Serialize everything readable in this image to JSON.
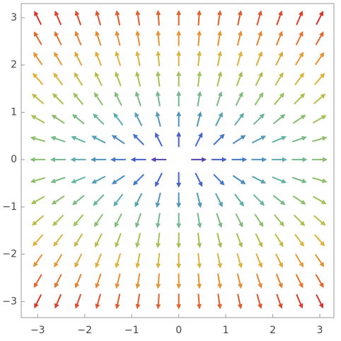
{
  "chart_data": {
    "type": "vector",
    "x": [
      -3,
      -2.57,
      -2.14,
      -1.71,
      -1.29,
      -0.86,
      -0.43,
      0,
      0.43,
      0.86,
      1.29,
      1.71,
      2.14,
      2.57,
      3
    ],
    "y": [
      -3,
      -2.57,
      -2.14,
      -1.71,
      -1.29,
      -0.86,
      -0.43,
      0,
      0.43,
      0.86,
      1.29,
      1.71,
      2.14,
      2.57,
      3
    ],
    "u": [
      [
        -3,
        -2.57,
        -2.14,
        -1.71,
        -1.29,
        -0.86,
        -0.43,
        0,
        0.43,
        0.86,
        1.29,
        1.71,
        2.14,
        2.57,
        3
      ],
      [
        -3,
        -2.57,
        -2.14,
        -1.71,
        -1.29,
        -0.86,
        -0.43,
        0,
        0.43,
        0.86,
        1.29,
        1.71,
        2.14,
        2.57,
        3
      ],
      [
        -3,
        -2.57,
        -2.14,
        -1.71,
        -1.29,
        -0.86,
        -0.43,
        0,
        0.43,
        0.86,
        1.29,
        1.71,
        2.14,
        2.57,
        3
      ],
      [
        -3,
        -2.57,
        -2.14,
        -1.71,
        -1.29,
        -0.86,
        -0.43,
        0,
        0.43,
        0.86,
        1.29,
        1.71,
        2.14,
        2.57,
        3
      ],
      [
        -3,
        -2.57,
        -2.14,
        -1.71,
        -1.29,
        -0.86,
        -0.43,
        0,
        0.43,
        0.86,
        1.29,
        1.71,
        2.14,
        2.57,
        3
      ],
      [
        -3,
        -2.57,
        -2.14,
        -1.71,
        -1.29,
        -0.86,
        -0.43,
        0,
        0.43,
        0.86,
        1.29,
        1.71,
        2.14,
        2.57,
        3
      ],
      [
        -3,
        -2.57,
        -2.14,
        -1.71,
        -1.29,
        -0.86,
        -0.43,
        0,
        0.43,
        0.86,
        1.29,
        1.71,
        2.14,
        2.57,
        3
      ],
      [
        -3,
        -2.57,
        -2.14,
        -1.71,
        -1.29,
        -0.86,
        -0.43,
        0,
        0.43,
        0.86,
        1.29,
        1.71,
        2.14,
        2.57,
        3
      ],
      [
        -3,
        -2.57,
        -2.14,
        -1.71,
        -1.29,
        -0.86,
        -0.43,
        0,
        0.43,
        0.86,
        1.29,
        1.71,
        2.14,
        2.57,
        3
      ],
      [
        -3,
        -2.57,
        -2.14,
        -1.71,
        -1.29,
        -0.86,
        -0.43,
        0,
        0.43,
        0.86,
        1.29,
        1.71,
        2.14,
        2.57,
        3
      ],
      [
        -3,
        -2.57,
        -2.14,
        -1.71,
        -1.29,
        -0.86,
        -0.43,
        0,
        0.43,
        0.86,
        1.29,
        1.71,
        2.14,
        2.57,
        3
      ],
      [
        -3,
        -2.57,
        -2.14,
        -1.71,
        -1.29,
        -0.86,
        -0.43,
        0,
        0.43,
        0.86,
        1.29,
        1.71,
        2.14,
        2.57,
        3
      ],
      [
        -3,
        -2.57,
        -2.14,
        -1.71,
        -1.29,
        -0.86,
        -0.43,
        0,
        0.43,
        0.86,
        1.29,
        1.71,
        2.14,
        2.57,
        3
      ],
      [
        -3,
        -2.57,
        -2.14,
        -1.71,
        -1.29,
        -0.86,
        -0.43,
        0,
        0.43,
        0.86,
        1.29,
        1.71,
        2.14,
        2.57,
        3
      ],
      [
        -3,
        -2.57,
        -2.14,
        -1.71,
        -1.29,
        -0.86,
        -0.43,
        0,
        0.43,
        0.86,
        1.29,
        1.71,
        2.14,
        2.57,
        3
      ]
    ],
    "v": [
      [
        -6,
        -6,
        -6,
        -6,
        -6,
        -6,
        -6,
        -6,
        -6,
        -6,
        -6,
        -6,
        -6,
        -6,
        -6
      ],
      [
        -5.14,
        -5.14,
        -5.14,
        -5.14,
        -5.14,
        -5.14,
        -5.14,
        -5.14,
        -5.14,
        -5.14,
        -5.14,
        -5.14,
        -5.14,
        -5.14,
        -5.14
      ],
      [
        -4.29,
        -4.29,
        -4.29,
        -4.29,
        -4.29,
        -4.29,
        -4.29,
        -4.29,
        -4.29,
        -4.29,
        -4.29,
        -4.29,
        -4.29,
        -4.29,
        -4.29
      ],
      [
        -3.43,
        -3.43,
        -3.43,
        -3.43,
        -3.43,
        -3.43,
        -3.43,
        -3.43,
        -3.43,
        -3.43,
        -3.43,
        -3.43,
        -3.43,
        -3.43,
        -3.43
      ],
      [
        -2.57,
        -2.57,
        -2.57,
        -2.57,
        -2.57,
        -2.57,
        -2.57,
        -2.57,
        -2.57,
        -2.57,
        -2.57,
        -2.57,
        -2.57,
        -2.57,
        -2.57
      ],
      [
        -1.71,
        -1.71,
        -1.71,
        -1.71,
        -1.71,
        -1.71,
        -1.71,
        -1.71,
        -1.71,
        -1.71,
        -1.71,
        -1.71,
        -1.71,
        -1.71,
        -1.71
      ],
      [
        -0.86,
        -0.86,
        -0.86,
        -0.86,
        -0.86,
        -0.86,
        -0.86,
        -0.86,
        -0.86,
        -0.86,
        -0.86,
        -0.86,
        -0.86,
        -0.86,
        -0.86
      ],
      [
        0,
        0,
        0,
        0,
        0,
        0,
        0,
        0,
        0,
        0,
        0,
        0,
        0,
        0,
        0
      ],
      [
        0.86,
        0.86,
        0.86,
        0.86,
        0.86,
        0.86,
        0.86,
        0.86,
        0.86,
        0.86,
        0.86,
        0.86,
        0.86,
        0.86,
        0.86
      ],
      [
        1.71,
        1.71,
        1.71,
        1.71,
        1.71,
        1.71,
        1.71,
        1.71,
        1.71,
        1.71,
        1.71,
        1.71,
        1.71,
        1.71,
        1.71
      ],
      [
        2.57,
        2.57,
        2.57,
        2.57,
        2.57,
        2.57,
        2.57,
        2.57,
        2.57,
        2.57,
        2.57,
        2.57,
        2.57,
        2.57,
        2.57
      ],
      [
        3.43,
        3.43,
        3.43,
        3.43,
        3.43,
        3.43,
        3.43,
        3.43,
        3.43,
        3.43,
        3.43,
        3.43,
        3.43,
        3.43,
        3.43
      ],
      [
        4.29,
        4.29,
        4.29,
        4.29,
        4.29,
        4.29,
        4.29,
        4.29,
        4.29,
        4.29,
        4.29,
        4.29,
        4.29,
        4.29,
        4.29
      ],
      [
        5.14,
        5.14,
        5.14,
        5.14,
        5.14,
        5.14,
        5.14,
        5.14,
        5.14,
        5.14,
        5.14,
        5.14,
        5.14,
        5.14,
        5.14
      ],
      [
        6,
        6,
        6,
        6,
        6,
        6,
        6,
        6,
        6,
        6,
        6,
        6,
        6,
        6,
        6
      ]
    ],
    "color_scale": [
      "#5a2ca0",
      "#3f6fd0",
      "#5fb3a8",
      "#9cc25a",
      "#e0b43a",
      "#e8802e",
      "#d8342a"
    ],
    "xlim": [
      -3.35,
      3.3
    ],
    "ylim": [
      -3.34,
      3.3
    ],
    "xticks": [
      {
        "value": -3,
        "label": "−3"
      },
      {
        "value": -2,
        "label": "−2"
      },
      {
        "value": -1,
        "label": "−1"
      },
      0,
      1,
      2,
      3
    ],
    "yticks": [
      {
        "value": -3,
        "label": "−3"
      },
      {
        "value": -2,
        "label": "−2"
      },
      {
        "value": -1,
        "label": "−1"
      },
      0,
      1,
      2,
      3
    ]
  }
}
